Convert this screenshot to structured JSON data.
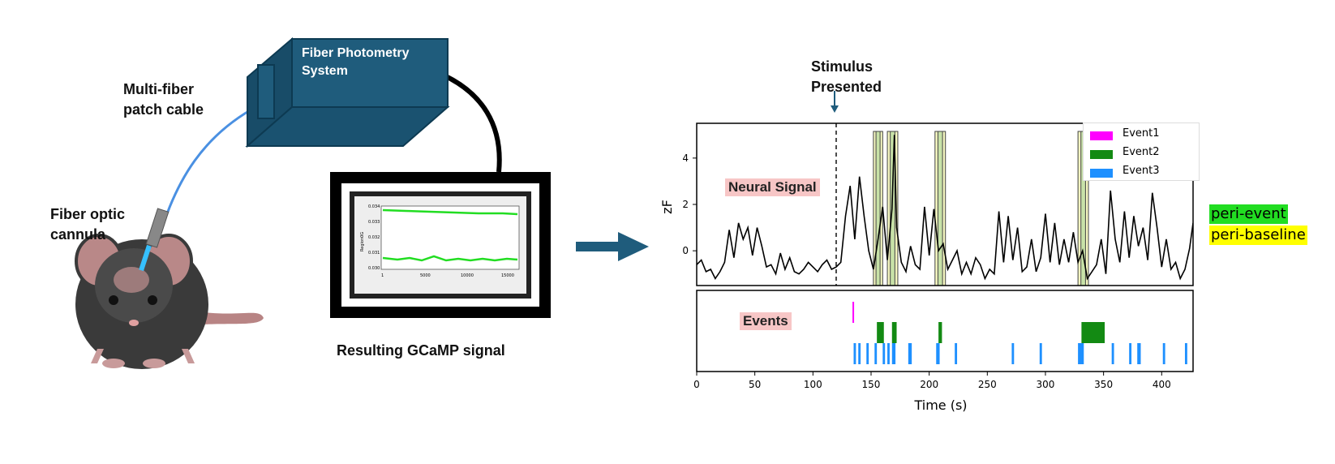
{
  "labels": {
    "multi_fiber": [
      "Multi-fiber",
      "patch cable"
    ],
    "fiber_system": [
      "Fiber Photometry",
      "System"
    ],
    "fiber_optic": [
      "Fiber optic",
      "cannula"
    ],
    "resulting_signal": "Resulting GCaMP signal",
    "stimulus": [
      "Stimulus",
      "Presented"
    ]
  },
  "monitor_plot": {
    "y_ticks": [
      "0.034",
      "0.033",
      "0.032",
      "0.031",
      "0.030"
    ],
    "y_label": "Region0G",
    "x_ticks": [
      "1",
      "5000",
      "10000",
      "15000"
    ]
  },
  "neural_plot": {
    "tag": "Neural Signal",
    "y_label": "zF",
    "y_ticks": [
      0,
      2,
      4
    ],
    "ylim": [
      -1.5,
      5.5
    ]
  },
  "events_plot": {
    "tag": "Events"
  },
  "x_axis": {
    "label": "Time (s)",
    "ticks": [
      0,
      50,
      100,
      150,
      200,
      250,
      300,
      350,
      400
    ],
    "xlim": [
      0,
      427
    ]
  },
  "legend": [
    {
      "name": "Event1",
      "color": "#ff00ff"
    },
    {
      "name": "Event2",
      "color": "#138a13"
    },
    {
      "name": "Event3",
      "color": "#1e90ff"
    }
  ],
  "peri_labels": {
    "event": {
      "text": "peri-event",
      "color": "#22dd22"
    },
    "baseline": {
      "text": "peri-baseline",
      "color": "#ffff00"
    }
  },
  "chart_data": {
    "type": "line",
    "stimulus_time": 120,
    "signal": {
      "x": [
        0,
        4,
        8,
        12,
        16,
        20,
        24,
        28,
        32,
        36,
        40,
        44,
        48,
        52,
        56,
        60,
        64,
        68,
        72,
        76,
        80,
        84,
        88,
        92,
        96,
        100,
        104,
        108,
        112,
        116,
        120,
        124,
        128,
        132,
        136,
        140,
        144,
        148,
        152,
        156,
        160,
        164,
        168,
        170,
        172,
        176,
        180,
        184,
        188,
        192,
        196,
        200,
        204,
        208,
        212,
        216,
        220,
        224,
        228,
        232,
        236,
        240,
        244,
        248,
        252,
        256,
        260,
        264,
        268,
        272,
        276,
        280,
        284,
        288,
        292,
        296,
        300,
        304,
        308,
        312,
        316,
        320,
        324,
        328,
        332,
        336,
        340,
        344,
        348,
        352,
        356,
        360,
        364,
        368,
        372,
        376,
        380,
        384,
        388,
        392,
        396,
        400,
        404,
        408,
        412,
        416,
        420,
        424,
        427
      ],
      "y": [
        -0.6,
        -0.4,
        -0.9,
        -0.8,
        -1.2,
        -0.9,
        -0.5,
        0.9,
        -0.3,
        1.2,
        0.5,
        1.0,
        -0.2,
        1.0,
        0.2,
        -0.7,
        -0.6,
        -1.0,
        -0.1,
        -0.8,
        -0.3,
        -0.9,
        -1.0,
        -0.8,
        -0.5,
        -0.7,
        -0.9,
        -0.6,
        -0.4,
        -0.8,
        -0.7,
        -0.5,
        1.5,
        2.8,
        0.5,
        3.2,
        1.5,
        0.0,
        -0.8,
        0.5,
        1.9,
        -0.4,
        1.8,
        5.0,
        1.0,
        -0.5,
        -0.9,
        0.2,
        -0.6,
        -0.8,
        1.9,
        -0.2,
        1.8,
        0.0,
        0.3,
        -0.8,
        -0.4,
        0.0,
        -1.0,
        -0.5,
        -1.0,
        -0.3,
        -0.6,
        -1.2,
        -0.8,
        -1.0,
        1.7,
        -0.5,
        1.5,
        -0.4,
        1.0,
        -0.9,
        -0.7,
        0.5,
        -0.9,
        -0.3,
        1.6,
        -0.5,
        1.2,
        -0.6,
        0.5,
        -0.5,
        0.8,
        -0.5,
        0.0,
        -1.2,
        -0.9,
        -0.6,
        0.5,
        -1.0,
        2.6,
        0.5,
        -0.5,
        1.7,
        -0.3,
        1.5,
        0.2,
        1.0,
        -0.4,
        2.5,
        1.0,
        -0.7,
        0.5,
        -0.8,
        -0.5,
        -1.2,
        -0.8,
        0.1,
        1.2
      ]
    },
    "peri_windows": [
      {
        "start": 152,
        "end": 160
      },
      {
        "start": 164,
        "end": 173
      },
      {
        "start": 205,
        "end": 214
      },
      {
        "start": 328,
        "end": 337
      }
    ],
    "events": {
      "Event1": [
        {
          "t": 134,
          "w": 1.2
        }
      ],
      "Event2": [
        {
          "t": 155,
          "w": 6
        },
        {
          "t": 168,
          "w": 4
        },
        {
          "t": 208,
          "w": 3
        },
        {
          "t": 331,
          "w": 20
        }
      ],
      "Event3": [
        {
          "t": 135,
          "w": 2
        },
        {
          "t": 139,
          "w": 2
        },
        {
          "t": 146,
          "w": 2
        },
        {
          "t": 153,
          "w": 2
        },
        {
          "t": 160,
          "w": 2
        },
        {
          "t": 164,
          "w": 2
        },
        {
          "t": 168,
          "w": 3
        },
        {
          "t": 182,
          "w": 3
        },
        {
          "t": 206,
          "w": 3
        },
        {
          "t": 222,
          "w": 2
        },
        {
          "t": 271,
          "w": 2
        },
        {
          "t": 295,
          "w": 2
        },
        {
          "t": 328,
          "w": 5
        },
        {
          "t": 357,
          "w": 2
        },
        {
          "t": 372,
          "w": 2
        },
        {
          "t": 379,
          "w": 3
        },
        {
          "t": 401,
          "w": 2
        },
        {
          "t": 420,
          "w": 2
        }
      ]
    }
  }
}
